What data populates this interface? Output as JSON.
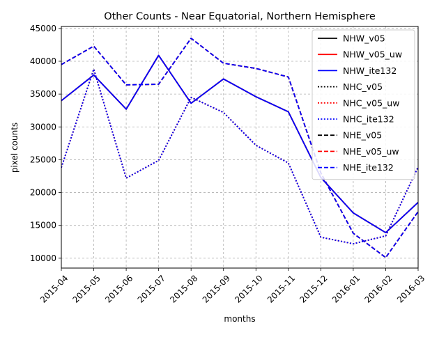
{
  "chart_data": {
    "type": "line",
    "title": "Other Counts - Near Equatorial, Northern Hemisphere",
    "xlabel": "months",
    "ylabel": "pixel counts",
    "x": [
      "2015-04",
      "2015-05",
      "2015-06",
      "2015-07",
      "2015-08",
      "2015-09",
      "2015-10",
      "2015-11",
      "2015-12",
      "2016-01",
      "2016-02",
      "2016-03"
    ],
    "ylim": [
      8500,
      45300
    ],
    "yticks": [
      10000,
      15000,
      20000,
      25000,
      30000,
      35000,
      40000,
      45000
    ],
    "yticklabels": [
      "10000",
      "15000",
      "20000",
      "25000",
      "30000",
      "35000",
      "40000",
      "45000"
    ],
    "grid": true,
    "legend_position": "top-right",
    "series": [
      {
        "name": "NHW_v05",
        "color": "#000000",
        "style": "solid",
        "values": [
          34000,
          37900,
          32700,
          40900,
          33600,
          37300,
          34600,
          32300,
          22300,
          16900,
          13900,
          18500
        ]
      },
      {
        "name": "NHW_v05_uw",
        "color": "#ff0000",
        "style": "solid",
        "values": [
          34000,
          37900,
          32700,
          40900,
          33600,
          37300,
          34600,
          32300,
          22300,
          16900,
          13900,
          18500
        ]
      },
      {
        "name": "NHW_ite132",
        "color": "#0000ff",
        "style": "solid",
        "values": [
          34000,
          37900,
          32700,
          40900,
          33600,
          37300,
          34600,
          32300,
          22300,
          16900,
          13900,
          18500
        ]
      },
      {
        "name": "NHC_v05",
        "color": "#000000",
        "style": "dotted",
        "values": [
          23800,
          38800,
          22200,
          24900,
          34500,
          32200,
          27200,
          24500,
          13200,
          12200,
          13400,
          23900
        ]
      },
      {
        "name": "NHC_v05_uw",
        "color": "#ff0000",
        "style": "dotted",
        "values": [
          23800,
          38800,
          22200,
          24900,
          34500,
          32200,
          27200,
          24500,
          13200,
          12200,
          13400,
          23900
        ]
      },
      {
        "name": "NHC_ite132",
        "color": "#0000ff",
        "style": "dotted",
        "values": [
          23800,
          38800,
          22200,
          24900,
          34500,
          32200,
          27200,
          24500,
          13200,
          12200,
          13400,
          23900
        ]
      },
      {
        "name": "NHE_v05",
        "color": "#000000",
        "style": "dashed",
        "values": [
          39500,
          42300,
          36400,
          36500,
          43500,
          39700,
          38900,
          37600,
          23000,
          13800,
          10100,
          17100
        ]
      },
      {
        "name": "NHE_v05_uw",
        "color": "#ff0000",
        "style": "dashed",
        "values": [
          39500,
          42300,
          36400,
          36500,
          43500,
          39700,
          38900,
          37600,
          23000,
          13800,
          10100,
          17100
        ]
      },
      {
        "name": "NHE_ite132",
        "color": "#0000ff",
        "style": "dashed",
        "values": [
          39500,
          42300,
          36400,
          36500,
          43500,
          39700,
          38900,
          37600,
          23000,
          13800,
          10100,
          17100
        ]
      }
    ]
  }
}
